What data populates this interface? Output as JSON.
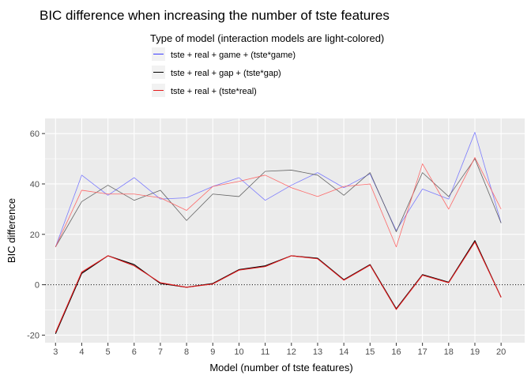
{
  "chart_data": {
    "type": "line",
    "title": "BIC difference when increasing the number of tste features",
    "xlabel": "Model (number of tste features)",
    "ylabel": "BIC difference",
    "legend_title": "Type of model (interaction models are light-colored)",
    "legend_position": "top",
    "grid": true,
    "xlim": [
      2.6,
      20.9
    ],
    "ylim": [
      -23,
      66
    ],
    "x_ticks": [
      3,
      4,
      5,
      6,
      7,
      8,
      9,
      10,
      11,
      12,
      13,
      14,
      15,
      16,
      17,
      18,
      19,
      20
    ],
    "y_ticks": [
      -20,
      0,
      20,
      40,
      60
    ],
    "reference_line": {
      "y": 0,
      "style": "dotted",
      "color": "#000000"
    },
    "x": [
      3,
      4,
      5,
      6,
      7,
      8,
      9,
      10,
      11,
      12,
      13,
      14,
      15,
      16,
      17,
      18,
      19,
      20
    ],
    "series": [
      {
        "name": "tste + real + game + (tste*game)",
        "color": "#6f6fff",
        "opacity": 0.9,
        "legend_color": "#3c3cff",
        "values": [
          15,
          43.5,
          35.5,
          42.5,
          34,
          34.5,
          39,
          42.5,
          33.5,
          39.5,
          44.5,
          38.5,
          44,
          21.5,
          38,
          34,
          60.5,
          24.5
        ]
      },
      {
        "name": "tste + real + gap + (tste*gap)",
        "color": "#555555",
        "opacity": 0.9,
        "legend_color": "#000000",
        "values": [
          15,
          33,
          39.5,
          33.5,
          37.5,
          25.5,
          36,
          35,
          45,
          45.5,
          43.5,
          35.5,
          44.5,
          21,
          44.5,
          35,
          50,
          24.5
        ]
      },
      {
        "name": "tste + real + (tste*real)",
        "color": "#ff5a5a",
        "opacity": 0.9,
        "legend_color": "#e41a1c",
        "values": [
          15,
          37.5,
          36,
          36,
          34.5,
          29.5,
          39,
          41,
          43.5,
          38.5,
          35,
          39,
          40,
          15,
          48,
          30,
          50.5,
          30
        ]
      },
      {
        "name": "",
        "color": "#000000",
        "opacity": 1,
        "values": [
          -19.5,
          4.5,
          11.5,
          8,
          0.5,
          -1,
          0.5,
          6,
          7.5,
          11.5,
          10.5,
          2,
          8,
          -9.5,
          4,
          1,
          17.5,
          -5
        ]
      },
      {
        "name": "",
        "color": "#e41a1c",
        "opacity": 1,
        "values": [
          -19,
          5,
          11.5,
          7.5,
          0.8,
          -1,
          0.3,
          5.8,
          7.2,
          11.5,
          10.3,
          1.8,
          7.8,
          -9.8,
          3.8,
          0.8,
          17,
          -5
        ]
      }
    ]
  }
}
